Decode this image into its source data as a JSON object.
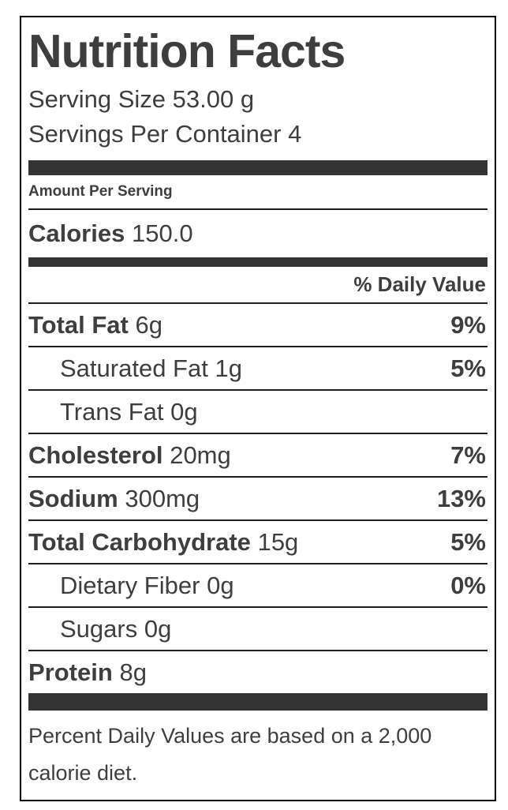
{
  "label": {
    "title": "Nutrition Facts",
    "serving_size": "Serving Size 53.00 g",
    "servings_per_container": "Servings Per Container 4",
    "amount_per_serving": "Amount Per Serving",
    "calories_label": "Calories",
    "calories_value": "150.0",
    "daily_value_header": "% Daily Value",
    "rows": [
      {
        "name": "Total Fat",
        "amount": "6g",
        "dv": "9%"
      },
      {
        "name": "Saturated Fat",
        "amount": "1g",
        "dv": "5%"
      },
      {
        "name": "Trans Fat",
        "amount": "0g",
        "dv": ""
      },
      {
        "name": "Cholesterol",
        "amount": "20mg",
        "dv": "7%"
      },
      {
        "name": "Sodium",
        "amount": "300mg",
        "dv": "13%"
      },
      {
        "name": "Total Carbohydrate",
        "amount": "15g",
        "dv": "5%"
      },
      {
        "name": "Dietary Fiber",
        "amount": "0g",
        "dv": "0%"
      },
      {
        "name": "Sugars",
        "amount": "0g",
        "dv": ""
      },
      {
        "name": "Protein",
        "amount": "8g",
        "dv": ""
      }
    ],
    "footnote": "Percent Daily Values are based on a 2,000 calorie diet.",
    "colors": {
      "text": "#3e3e3e",
      "bar": "#333333",
      "rule": "#1f1f1f",
      "border": "#000000",
      "background": "#ffffff"
    }
  }
}
